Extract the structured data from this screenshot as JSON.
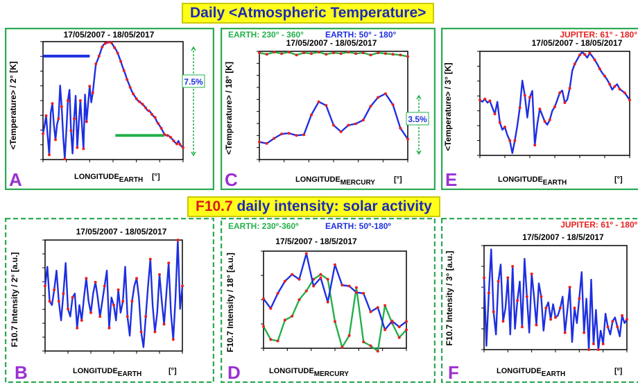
{
  "titles": {
    "temperature": "Daily <Atmospheric Temperature>",
    "f107_prefix": "F10.7",
    "f107_rest": " daily intensity: solar activity"
  },
  "colors": {
    "banner_bg": "#ffff1a",
    "banner_text": "#1c2bb8",
    "banner_highlight": "#d81b1b",
    "blue": "#1e2fe0",
    "red": "#e82020",
    "green": "#22b04a",
    "letter": "#9b30d0",
    "frame": "#2eaa55"
  },
  "chart_data": [
    {
      "panel": "A",
      "type": "line",
      "frame_style": "solid",
      "date_label": "17/05/2007 - 18/05/2017",
      "ylabel": "<Temperature> / 2° [K]",
      "xlabel": "LONGITUDE",
      "xlabel_sub": "EARTH",
      "unit": "[°]",
      "xticks": [
        "49",
        "109",
        "169",
        "229",
        "289",
        "349",
        "49"
      ],
      "yticks": [
        "246.2",
        "248.7",
        "251.1",
        "253.6",
        "256.0",
        "258.5",
        "260.9",
        "263.4",
        "265.8"
      ],
      "ylim": [
        246.2,
        265.8
      ],
      "x_range": [
        0,
        360
      ],
      "annotation": "7.5%",
      "bars": [
        {
          "color": "blue",
          "y": 263.4,
          "x": [
            0,
            120
          ]
        },
        {
          "color": "green",
          "y": 250.2,
          "x": [
            186,
            312
          ]
        }
      ],
      "series": [
        {
          "line_color": "blue",
          "dot_color": "red",
          "x": [
            0,
            4,
            8,
            12,
            16,
            20,
            24,
            28,
            32,
            36,
            40,
            44,
            48,
            52,
            56,
            60,
            64,
            68,
            72,
            76,
            80,
            84,
            88,
            92,
            96,
            100,
            104,
            108,
            112,
            116,
            120,
            124,
            128,
            132,
            136,
            140,
            144,
            148,
            152,
            156,
            160,
            164,
            168,
            172,
            176,
            180,
            184,
            188,
            192,
            196,
            200,
            204,
            208,
            212,
            216,
            220,
            224,
            228,
            232,
            236,
            240,
            244,
            248,
            252,
            256,
            260,
            264,
            268,
            272,
            276,
            280,
            284,
            288,
            292,
            296,
            300,
            304,
            308,
            312,
            316,
            320,
            324,
            328,
            332,
            336,
            340,
            344,
            348,
            352,
            356,
            360
          ],
          "y": [
            250.5,
            251.8,
            253.5,
            250.2,
            247,
            254,
            255.5,
            252,
            249.5,
            252,
            253,
            258.5,
            255,
            250,
            246.3,
            251,
            256,
            257.8,
            251,
            247.2,
            253,
            256.8,
            248.2,
            252.2,
            256,
            252,
            248,
            257,
            252.5,
            255.5,
            258.4,
            255.7,
            257.3,
            259.8,
            262.1,
            262.7,
            263.4,
            264.1,
            264.9,
            265.3,
            265.5,
            265.6,
            265.7,
            265.8,
            265.6,
            265.2,
            264.8,
            264.4,
            263.9,
            263.2,
            262.5,
            261.7,
            261,
            260.3,
            259.5,
            258.9,
            258.2,
            257.6,
            257.1,
            256.7,
            256.3,
            256,
            255.8,
            255.6,
            255.4,
            255.1,
            254.8,
            254.4,
            254.3,
            254.1,
            253.7,
            253.4,
            253.2,
            252.6,
            252.2,
            251.8,
            251.4,
            250.9,
            250.4,
            250.2,
            250.2,
            250.1,
            249.9,
            249.6,
            249.3,
            249,
            248.8,
            249.3,
            248.7,
            248.4,
            248.2
          ]
        }
      ]
    },
    {
      "panel": "C",
      "type": "line",
      "frame_style": "solid",
      "legend": [
        "EARTH: 230° - 360°",
        "EARTH: 50° - 180°"
      ],
      "date_label": "17/05/2007 - 18/05/2017",
      "ylabel": "<Temperature> / 18° [K]",
      "xlabel": "LONGITUDE",
      "xlabel_sub": "MERCURY",
      "unit": "[°]",
      "xticks": [
        "90",
        "150",
        "210",
        "270",
        "330",
        "30",
        "90"
      ],
      "yticks": [
        "247.7",
        "249.3",
        "251.0",
        "252.6",
        "254.3",
        "255.9",
        "257.5",
        "259.2",
        "260.8",
        "262.5"
      ],
      "ylim": [
        247.7,
        262.5
      ],
      "x_range": [
        0,
        360
      ],
      "annotation": "3.5%",
      "series": [
        {
          "name": "EARTH: 230° - 360°",
          "line_color": "green",
          "dot_color": "red",
          "x": [
            0,
            18,
            36,
            54,
            72,
            90,
            108,
            126,
            144,
            162,
            180,
            198,
            216,
            234,
            252,
            270,
            288,
            306,
            324,
            342,
            360
          ],
          "y": [
            262.3,
            262.1,
            262.4,
            262.2,
            262.4,
            262,
            262.3,
            262.2,
            262.4,
            262.1,
            262.3,
            262.2,
            262.4,
            262.2,
            262.3,
            262,
            262.3,
            262.2,
            262.1,
            262,
            261.8
          ]
        },
        {
          "name": "EARTH: 50° - 180°",
          "line_color": "blue",
          "dot_color": "red",
          "x": [
            0,
            18,
            36,
            54,
            72,
            90,
            108,
            126,
            144,
            162,
            180,
            198,
            216,
            234,
            252,
            270,
            288,
            306,
            324,
            342,
            360
          ],
          "y": [
            250.1,
            249.9,
            250.6,
            251.2,
            251.3,
            251,
            251.1,
            253.8,
            255.6,
            255.1,
            252.4,
            251.5,
            252.4,
            252.6,
            253.1,
            255,
            256.2,
            256.7,
            255.2,
            252,
            250.5
          ]
        }
      ]
    },
    {
      "panel": "E",
      "type": "line",
      "frame_style": "solid",
      "legend": [
        "JUPITER: 61° - 180°"
      ],
      "date_label": "17/05/2007 - 18/05/2017",
      "ylabel": "<Temperature> / 3° [K]",
      "xlabel": "LONGITUDE",
      "xlabel_sub": "EARTH",
      "unit": "[°]",
      "xticks": [
        "0",
        "60",
        "120",
        "180",
        "240",
        "300",
        "360"
      ],
      "yticks": [
        "242.9",
        "246.2",
        "249.5",
        "252.8",
        "256.1",
        "259.4",
        "262.7",
        "266.0"
      ],
      "ylim": [
        242.9,
        266.0
      ],
      "x_range": [
        0,
        360
      ],
      "series": [
        {
          "line_color": "blue",
          "dot_color": "red",
          "x": [
            0,
            6,
            12,
            18,
            24,
            30,
            36,
            42,
            48,
            54,
            60,
            66,
            72,
            78,
            84,
            90,
            96,
            102,
            108,
            114,
            120,
            126,
            132,
            138,
            144,
            150,
            156,
            162,
            168,
            174,
            180,
            186,
            192,
            198,
            204,
            210,
            216,
            222,
            228,
            234,
            240,
            246,
            252,
            258,
            264,
            270,
            276,
            282,
            288,
            294,
            300,
            306,
            312,
            318,
            324,
            330,
            336,
            342,
            348,
            354,
            360
          ],
          "y": [
            255.2,
            254.8,
            255.4,
            254.6,
            255,
            253.5,
            252.1,
            254.8,
            250.2,
            248.6,
            249.2,
            247.4,
            246.2,
            243.4,
            246.2,
            249.5,
            253.5,
            259.5,
            256.2,
            251.3,
            255.8,
            257.2,
            245.2,
            249.8,
            253.2,
            251.8,
            250.4,
            249.7,
            250.8,
            252.8,
            253.7,
            255.2,
            256.8,
            257.3,
            254.6,
            255.3,
            257.8,
            261.7,
            263.2,
            264.2,
            265.2,
            265.8,
            265.3,
            264.6,
            265.6,
            264.9,
            264.1,
            263.2,
            262.1,
            261.2,
            260.5,
            259.7,
            258.7,
            257.5,
            258.2,
            258.7,
            257.6,
            257.2,
            256.8,
            256,
            255.2
          ]
        }
      ]
    },
    {
      "panel": "B",
      "type": "line",
      "frame_style": "dashed",
      "date_label": "17/05/2007 - 18/05/2017",
      "ylabel": "F10.7 Intensity / 2° [a.u.]",
      "xlabel": "LONGITUDE",
      "xlabel_sub": "EARTH",
      "unit": "[°]",
      "xticks": [
        "49",
        "109",
        "169",
        "229",
        "289",
        "349",
        "49"
      ],
      "yticks": [
        "87",
        "91",
        "96",
        "100",
        "103",
        "106",
        "109",
        "113",
        "116"
      ],
      "ylim": [
        87,
        116
      ],
      "x_range": [
        0,
        360
      ],
      "series": [
        {
          "line_color": "blue",
          "dot_color": "red",
          "x": [
            0,
            6,
            12,
            18,
            24,
            30,
            36,
            42,
            48,
            54,
            60,
            66,
            72,
            78,
            84,
            90,
            96,
            102,
            108,
            114,
            120,
            126,
            132,
            138,
            144,
            150,
            156,
            162,
            168,
            174,
            180,
            186,
            192,
            198,
            204,
            210,
            216,
            222,
            228,
            234,
            240,
            246,
            252,
            258,
            264,
            270,
            276,
            282,
            288,
            294,
            300,
            306,
            312,
            318,
            324,
            330,
            336,
            342,
            348,
            354,
            360
          ],
          "y": [
            104,
            109,
            100,
            99,
            103,
            108,
            100,
            95,
            102,
            110,
            98,
            96,
            101,
            102,
            93,
            99,
            95,
            101,
            106,
            100,
            97,
            102,
            105,
            101,
            96,
            100,
            104,
            108,
            93,
            101,
            99,
            95,
            103,
            97,
            100,
            109,
            96,
            91,
            100,
            104,
            106,
            101,
            92,
            88,
            96,
            104,
            111,
            99,
            92,
            97,
            107,
            100,
            94,
            102,
            110,
            97,
            90,
            101,
            116,
            98,
            104
          ]
        }
      ]
    },
    {
      "panel": "D",
      "type": "line",
      "frame_style": "dashed",
      "legend": [
        "EARTH: 230º-360º",
        "EARTH: 50º-180º"
      ],
      "date_label": "17/5/2007 - 18/5/2017",
      "ylabel": "F10.7 Intensity / 18° [a.u.]",
      "xlabel": "LONGITUDE",
      "xlabel_sub": "MERCURY",
      "unit": "",
      "xticks": [
        "0",
        "60",
        "120",
        "180",
        "240",
        "300",
        "360"
      ],
      "yticks": [
        "91",
        "96",
        "101",
        "106",
        "111"
      ],
      "ylim": [
        91,
        111
      ],
      "x_range": [
        0,
        360
      ],
      "series": [
        {
          "name": "EARTH: 230º-360º",
          "line_color": "green",
          "dot_color": "red",
          "x": [
            0,
            18,
            36,
            54,
            72,
            90,
            108,
            126,
            144,
            162,
            180,
            198,
            216,
            234,
            252,
            270,
            288,
            306,
            324,
            342,
            360
          ],
          "y": [
            95.5,
            92.8,
            92.5,
            96.8,
            97.6,
            101,
            102.8,
            105.2,
            106.2,
            105.2,
            96.5,
            91.2,
            93.6,
            103.5,
            92.3,
            91.5,
            90.4,
            99.8,
            96.2,
            93.2,
            94.8
          ]
        },
        {
          "name": "EARTH: 50º-180º",
          "line_color": "blue",
          "dot_color": "red",
          "x": [
            0,
            18,
            36,
            54,
            72,
            90,
            108,
            126,
            144,
            162,
            180,
            198,
            216,
            234,
            252,
            270,
            288,
            306,
            324,
            342,
            360
          ],
          "y": [
            101.2,
            99.2,
            102.3,
            104.8,
            106.2,
            105.2,
            110.5,
            103.8,
            105.5,
            100.5,
            108.2,
            104,
            103.8,
            102.5,
            102.3,
            98.5,
            99.4,
            94.8,
            96.6,
            95.4,
            96.5
          ]
        }
      ]
    },
    {
      "panel": "F",
      "type": "line",
      "frame_style": "dashed",
      "legend": [
        "JUPITER: 61º - 180º"
      ],
      "date_label": "17/5/2007 - 18/5/2017",
      "ylabel": "F10.7 Intensity / 3° [a.u.]",
      "xlabel": "LONGITUDE",
      "xlabel_sub": "EARTH",
      "unit": "[º]",
      "xticks": [
        "0",
        "60",
        "120",
        "180",
        "240",
        "300",
        "360"
      ],
      "yticks": [
        "100",
        "111",
        "122",
        "133",
        "144",
        "155"
      ],
      "ylim": [
        100,
        155
      ],
      "x_range": [
        0,
        360
      ],
      "series": [
        {
          "line_color": "blue",
          "dot_color": "red",
          "x": [
            0,
            6,
            12,
            18,
            24,
            30,
            36,
            42,
            48,
            54,
            60,
            66,
            72,
            78,
            84,
            90,
            96,
            102,
            108,
            114,
            120,
            126,
            132,
            138,
            144,
            150,
            156,
            162,
            168,
            174,
            180,
            186,
            192,
            198,
            204,
            210,
            216,
            222,
            228,
            234,
            240,
            246,
            252,
            258,
            264,
            270,
            276,
            282,
            288,
            294,
            300,
            306,
            312,
            318,
            324,
            330,
            336,
            342,
            348,
            354,
            360
          ],
          "y": [
            138,
            102,
            130,
            153,
            120,
            108,
            136,
            145,
            115,
            122,
            138,
            108,
            144,
            111,
            126,
            136,
            112,
            148,
            128,
            109,
            140,
            128,
            113,
            135,
            128,
            110,
            122,
            125,
            116,
            124,
            117,
            118,
            122,
            128,
            109,
            121,
            133,
            104,
            122,
            114,
            127,
            141,
            109,
            127,
            100,
            137,
            103,
            121,
            100,
            110,
            103,
            119,
            112,
            108,
            115,
            117,
            112,
            107,
            118,
            114,
            116
          ]
        }
      ]
    }
  ]
}
